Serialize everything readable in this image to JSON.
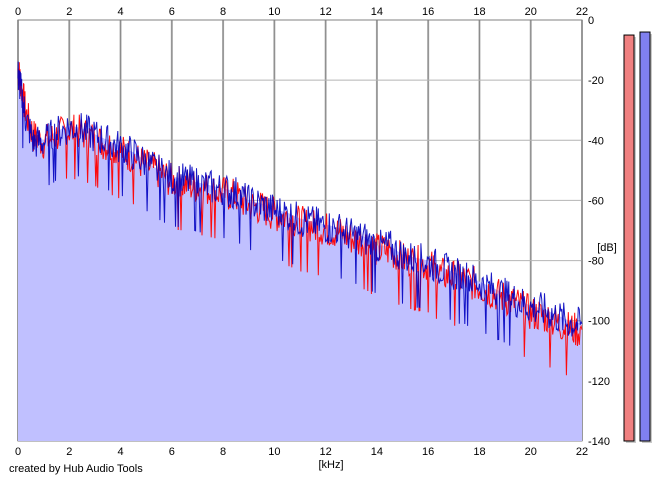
{
  "credit": "created by Hub Audio Tools",
  "chart_data": {
    "type": "area",
    "xlabel": "[kHz]",
    "ylabel": "[dB]",
    "xlim": [
      0,
      22
    ],
    "ylim": [
      -140,
      0
    ],
    "x_ticks": [
      0,
      2,
      4,
      6,
      8,
      10,
      12,
      14,
      16,
      18,
      20,
      22
    ],
    "y_ticks": [
      0,
      -20,
      -40,
      -60,
      -80,
      -100,
      -120,
      -140
    ],
    "grid": true,
    "area_fill": "#c0c0ff",
    "series": [
      {
        "color": "#ff0000",
        "x": [
          0,
          0.1,
          0.3,
          0.6,
          1,
          1.5,
          2,
          2.5,
          3,
          3.5,
          4,
          4.5,
          5,
          5.5,
          6,
          6.5,
          7,
          7.5,
          8,
          8.5,
          9,
          9.5,
          10,
          10.5,
          11,
          11.5,
          12,
          12.5,
          13,
          13.5,
          14,
          14.5,
          15,
          15.5,
          16,
          16.5,
          17,
          17.5,
          18,
          18.5,
          19,
          19.5,
          20,
          20.5,
          21,
          21.5,
          22
        ],
        "y": [
          -16,
          -20,
          -30,
          -38,
          -40,
          -38,
          -36,
          -37,
          -39,
          -41,
          -43,
          -45,
          -48,
          -50,
          -53,
          -54,
          -55,
          -56,
          -57,
          -58,
          -61,
          -62,
          -64,
          -65,
          -67,
          -68,
          -69,
          -70,
          -72,
          -73,
          -76,
          -76,
          -79,
          -80,
          -81,
          -84,
          -85,
          -86,
          -88,
          -90,
          -92,
          -94,
          -97,
          -98,
          -100,
          -102,
          -103
        ]
      },
      {
        "color": "#0000c0",
        "x": [
          0,
          0.1,
          0.3,
          0.6,
          1,
          1.5,
          2,
          2.5,
          3,
          3.5,
          4,
          4.5,
          5,
          5.5,
          6,
          6.5,
          7,
          7.5,
          8,
          8.5,
          9,
          9.5,
          10,
          10.5,
          11,
          11.5,
          12,
          12.5,
          13,
          13.5,
          14,
          14.5,
          15,
          15.5,
          16,
          16.5,
          17,
          17.5,
          18,
          18.5,
          19,
          19.5,
          20,
          20.5,
          21,
          21.5,
          22
        ],
        "y": [
          -18,
          -22,
          -32,
          -40,
          -40,
          -37,
          -35,
          -36,
          -38,
          -40,
          -42,
          -44,
          -47,
          -50,
          -52,
          -53,
          -54,
          -55,
          -56,
          -57,
          -60,
          -61,
          -63,
          -64,
          -66,
          -67,
          -68,
          -69,
          -71,
          -72,
          -75,
          -75,
          -78,
          -79,
          -80,
          -82,
          -84,
          -85,
          -87,
          -89,
          -91,
          -93,
          -95,
          -96,
          -98,
          -100,
          -101
        ]
      }
    ],
    "level_meters": [
      {
        "color": "#f08080",
        "top_db": -5
      },
      {
        "color": "#8080f0",
        "top_db": -4
      }
    ]
  }
}
